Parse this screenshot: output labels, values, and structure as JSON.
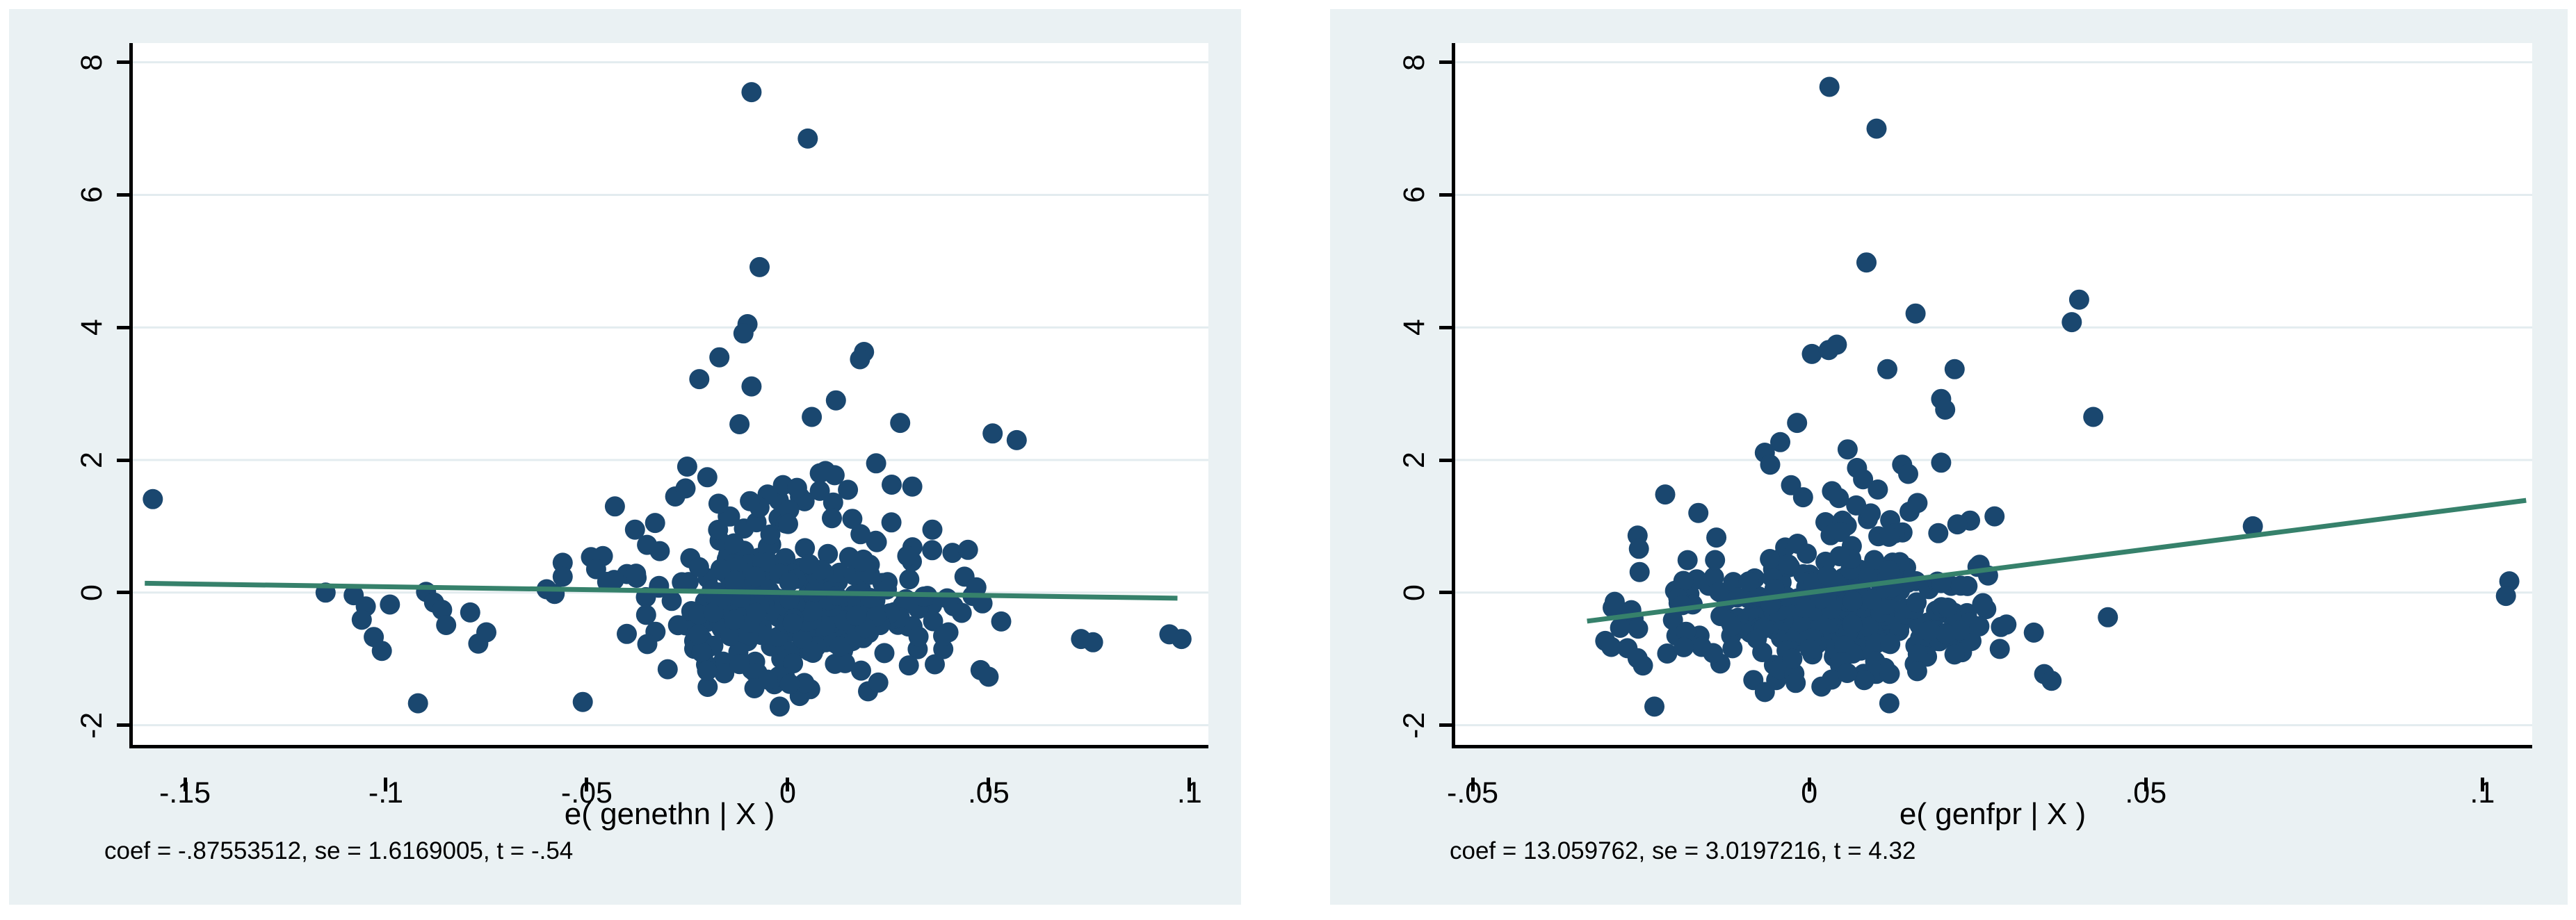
{
  "palette": {
    "page_bg": "#ffffff",
    "card_bg": "#eaf1f3",
    "plot_bg": "#ffffff",
    "grid": "#e3ecef",
    "axis": "#000000",
    "marker": "#1a476f",
    "line": "#36816b",
    "text": "#000000"
  },
  "chart_data": [
    {
      "type": "scatter",
      "panel": "left",
      "xlabel": "e( genethn | X )",
      "note": "coef = -.87553512, se = 1.6169005, t = -.54",
      "legend": "none",
      "grid": "horizontal",
      "xlim": [
        -0.1635,
        0.1047
      ],
      "ylim": [
        -2.34,
        8.29
      ],
      "xticks": [
        {
          "v": -0.15,
          "label": "-.15"
        },
        {
          "v": -0.1,
          "label": "-.1"
        },
        {
          "v": -0.05,
          "label": "-.05"
        },
        {
          "v": 0.0,
          "label": "0"
        },
        {
          "v": 0.05,
          "label": ".05"
        },
        {
          "v": 0.1,
          "label": ".1"
        }
      ],
      "yticks": [
        {
          "v": -2,
          "label": "-2"
        },
        {
          "v": 0,
          "label": "0"
        },
        {
          "v": 2,
          "label": "2"
        },
        {
          "v": 4,
          "label": "4"
        },
        {
          "v": 6,
          "label": "6"
        },
        {
          "v": 8,
          "label": "8"
        }
      ],
      "regression_line": {
        "coef": -0.87553512,
        "x1": -0.16,
        "y1": 0.14,
        "x2": 0.097,
        "y2": -0.085
      },
      "points": [
        [
          -0.158,
          1.41
        ],
        [
          -0.009,
          7.55
        ],
        [
          0.005,
          6.85
        ],
        [
          -0.007,
          4.91
        ],
        [
          -0.01,
          4.05
        ],
        [
          -0.011,
          3.91
        ],
        [
          0.019,
          3.63
        ],
        [
          0.018,
          3.52
        ],
        [
          -0.017,
          3.55
        ],
        [
          -0.022,
          3.22
        ],
        [
          -0.009,
          3.11
        ],
        [
          0.006,
          2.65
        ],
        [
          -0.012,
          2.54
        ],
        [
          0.028,
          2.56
        ],
        [
          0.057,
          2.3
        ],
        [
          0.012,
          2.9
        ],
        [
          -0.025,
          1.9
        ],
        [
          -0.02,
          1.74
        ],
        [
          -0.028,
          1.45
        ],
        [
          0.008,
          1.8
        ],
        [
          0.015,
          1.55
        ],
        [
          0.031,
          1.6
        ],
        [
          0.022,
          1.95
        ],
        [
          -0.115,
          0.0
        ],
        [
          -0.108,
          -0.04
        ],
        [
          -0.105,
          -0.21
        ],
        [
          -0.106,
          -0.41
        ],
        [
          -0.099,
          -0.18
        ],
        [
          -0.103,
          -0.67
        ],
        [
          -0.101,
          -0.88
        ],
        [
          -0.09,
          0.01
        ],
        [
          -0.088,
          -0.15
        ],
        [
          -0.086,
          -0.26
        ],
        [
          -0.085,
          -0.49
        ],
        [
          -0.079,
          -0.3
        ],
        [
          -0.075,
          -0.6
        ],
        [
          -0.077,
          -0.77
        ],
        [
          -0.092,
          -1.67
        ],
        [
          -0.06,
          0.05
        ],
        [
          -0.058,
          -0.02
        ],
        [
          -0.056,
          0.45
        ],
        [
          -0.056,
          0.24
        ],
        [
          -0.043,
          1.3
        ],
        [
          -0.038,
          0.95
        ],
        [
          -0.035,
          0.72
        ],
        [
          -0.046,
          0.55
        ],
        [
          -0.04,
          0.28
        ],
        [
          -0.033,
          1.05
        ],
        [
          -0.051,
          -1.65
        ],
        [
          -0.002,
          -1.72
        ],
        [
          0.02,
          -1.49
        ],
        [
          0.003,
          -1.56
        ],
        [
          0.095,
          -0.63
        ],
        [
          0.098,
          -0.7
        ],
        [
          0.073,
          -0.7
        ],
        [
          0.076,
          -0.75
        ],
        [
          0.048,
          -1.17
        ],
        [
          0.05,
          -1.27
        ],
        [
          0.051,
          2.4
        ],
        [
          0.036,
          0.95
        ],
        [
          0.041,
          0.6
        ],
        [
          0.044,
          0.24
        ],
        [
          0.04,
          -0.6
        ],
        [
          0.046,
          -0.05
        ]
      ],
      "point_clusters": [
        {
          "n": 190,
          "cx": 0.003,
          "cy": -0.42,
          "sx": 0.0155,
          "sy": 0.33,
          "seed": 101
        },
        {
          "n": 80,
          "cx": -0.001,
          "cy": 0.28,
          "sx": 0.017,
          "sy": 0.3,
          "seed": 102
        },
        {
          "n": 30,
          "cx": 0.002,
          "cy": 1.15,
          "sx": 0.016,
          "sy": 0.32,
          "seed": 103
        },
        {
          "n": 10,
          "cx": -0.044,
          "cy": 0.15,
          "sx": 0.007,
          "sy": 0.4,
          "seed": 104
        },
        {
          "n": 14,
          "cx": 0.037,
          "cy": -0.25,
          "sx": 0.006,
          "sy": 0.4,
          "seed": 105
        },
        {
          "n": 16,
          "cx": 0.004,
          "cy": -1.25,
          "sx": 0.013,
          "sy": 0.15,
          "seed": 106
        }
      ]
    },
    {
      "type": "scatter",
      "panel": "right",
      "xlabel": "e( genfpr | X )",
      "note": "coef = 13.059762, se = 3.0197216, t = 4.32",
      "legend": "none",
      "grid": "horizontal",
      "xlim": [
        -0.0529,
        0.1074
      ],
      "ylim": [
        -2.34,
        8.29
      ],
      "xticks": [
        {
          "v": -0.05,
          "label": "-.05"
        },
        {
          "v": 0.0,
          "label": "0"
        },
        {
          "v": 0.05,
          "label": ".05"
        },
        {
          "v": 0.1,
          "label": ".1"
        }
      ],
      "yticks": [
        {
          "v": -2,
          "label": "-2"
        },
        {
          "v": 0,
          "label": "0"
        },
        {
          "v": 2,
          "label": "2"
        },
        {
          "v": 4,
          "label": "4"
        },
        {
          "v": 6,
          "label": "6"
        },
        {
          "v": 8,
          "label": "8"
        }
      ],
      "regression_line": {
        "coef": 13.059762,
        "x1": -0.033,
        "y1": -0.431,
        "x2": 0.1065,
        "y2": 1.391
      },
      "points": [
        [
          0.003,
          7.63
        ],
        [
          0.01,
          7.0
        ],
        [
          0.0085,
          4.98
        ],
        [
          0.0401,
          4.42
        ],
        [
          0.039,
          4.08
        ],
        [
          0.0158,
          4.21
        ],
        [
          0.0004,
          3.6
        ],
        [
          0.0029,
          3.66
        ],
        [
          0.0041,
          3.74
        ],
        [
          0.0116,
          3.37
        ],
        [
          0.0216,
          3.37
        ],
        [
          0.0196,
          2.92
        ],
        [
          0.0202,
          2.76
        ],
        [
          -0.0018,
          2.56
        ],
        [
          -0.0043,
          2.27
        ],
        [
          -0.0066,
          2.11
        ],
        [
          -0.0058,
          1.93
        ],
        [
          0.0057,
          2.16
        ],
        [
          0.0071,
          1.88
        ],
        [
          0.008,
          1.71
        ],
        [
          0.0138,
          1.93
        ],
        [
          0.0147,
          1.79
        ],
        [
          0.0196,
          1.96
        ],
        [
          -0.0214,
          1.48
        ],
        [
          -0.0027,
          1.62
        ],
        [
          -0.0255,
          0.86
        ],
        [
          -0.0253,
          0.66
        ],
        [
          -0.0252,
          0.31
        ],
        [
          -0.0138,
          0.83
        ],
        [
          -0.018,
          0.15
        ],
        [
          -0.0178,
          -0.02
        ],
        [
          -0.0289,
          -0.14
        ],
        [
          -0.0275,
          -0.3
        ],
        [
          -0.0261,
          -0.39
        ],
        [
          -0.0303,
          -0.73
        ],
        [
          -0.0294,
          -0.82
        ],
        [
          -0.027,
          -0.84
        ],
        [
          -0.0255,
          -0.99
        ],
        [
          -0.0247,
          -1.1
        ],
        [
          -0.0211,
          -0.92
        ],
        [
          -0.023,
          -1.72
        ],
        [
          -0.0163,
          -0.65
        ],
        [
          -0.016,
          -0.82
        ],
        [
          -0.0116,
          -0.65
        ],
        [
          -0.0114,
          -0.84
        ],
        [
          -0.0083,
          -1.32
        ],
        [
          -0.0066,
          -1.5
        ],
        [
          -0.0049,
          -1.32
        ],
        [
          -0.0038,
          -1.15
        ],
        [
          0.0119,
          -1.67
        ],
        [
          0.0177,
          -0.45
        ],
        [
          0.018,
          -0.62
        ],
        [
          0.0208,
          -0.68
        ],
        [
          0.0219,
          -0.79
        ],
        [
          0.0227,
          -0.9
        ],
        [
          0.0283,
          -0.85
        ],
        [
          0.0258,
          -0.16
        ],
        [
          0.0263,
          -0.25
        ],
        [
          0.104,
          0.17
        ],
        [
          0.1035,
          -0.05
        ],
        [
          0.0659,
          1.0
        ],
        [
          0.0422,
          2.65
        ],
        [
          0.0349,
          -1.23
        ],
        [
          0.036,
          -1.33
        ]
      ],
      "point_clusters": [
        {
          "n": 200,
          "cx": 0.0045,
          "cy": -0.42,
          "sx": 0.01,
          "sy": 0.3,
          "seed": 201
        },
        {
          "n": 75,
          "cx": 0.004,
          "cy": 0.28,
          "sx": 0.011,
          "sy": 0.26,
          "seed": 202
        },
        {
          "n": 22,
          "cx": 0.005,
          "cy": 1.05,
          "sx": 0.0115,
          "sy": 0.28,
          "seed": 203
        },
        {
          "n": 16,
          "cx": 0.0185,
          "cy": -0.3,
          "sx": 0.0045,
          "sy": 0.38,
          "seed": 204
        },
        {
          "n": 10,
          "cx": -0.0205,
          "cy": -0.45,
          "sx": 0.0045,
          "sy": 0.4,
          "seed": 205
        },
        {
          "n": 14,
          "cx": 0.002,
          "cy": -1.22,
          "sx": 0.008,
          "sy": 0.14,
          "seed": 206
        }
      ]
    }
  ]
}
